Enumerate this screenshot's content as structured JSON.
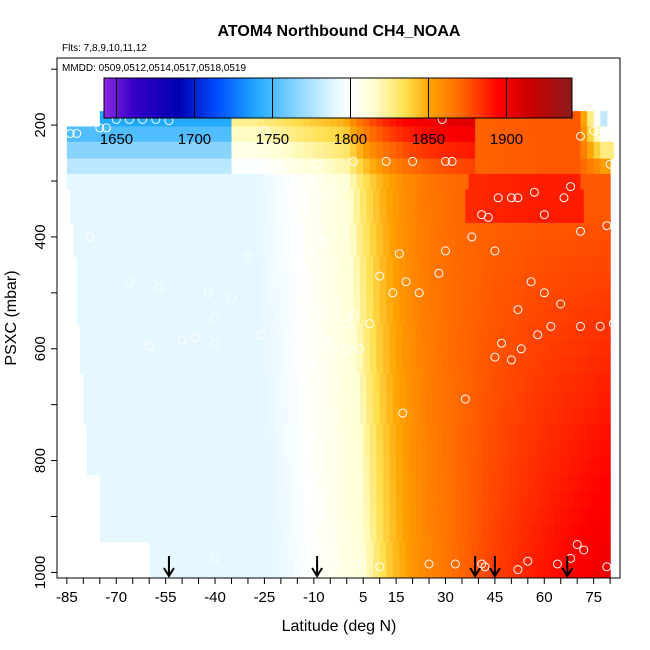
{
  "chart_data": {
    "type": "heatmap",
    "title": "ATOM4 Northbound CH4_NOAA",
    "subtitle_flights": "Flts: 7,8,9,10,11,12",
    "subtitle_dates": "MMDD: 0509,0512,0514,0517,0518,0519",
    "xlabel": "Latitude (deg N)",
    "ylabel": "PSXC (mbar)",
    "xlim": [
      -88,
      83
    ],
    "ylim": [
      1010,
      80
    ],
    "y_reversed": true,
    "x_ticks": [
      -85,
      -70,
      -55,
      -40,
      -25,
      -10,
      5,
      15,
      30,
      45,
      60,
      75
    ],
    "y_ticks": [
      200,
      400,
      600,
      800,
      1000
    ],
    "colorbar": {
      "range": [
        1642,
        1942
      ],
      "ticks": [
        1650,
        1700,
        1750,
        1800,
        1850,
        1900
      ],
      "placement": "top",
      "stops": [
        {
          "v": 1642,
          "c": "#8a2be2"
        },
        {
          "v": 1660,
          "c": "#3a00c8"
        },
        {
          "v": 1690,
          "c": "#0000b4"
        },
        {
          "v": 1715,
          "c": "#0050ff"
        },
        {
          "v": 1740,
          "c": "#22aaff"
        },
        {
          "v": 1765,
          "c": "#88d4ff"
        },
        {
          "v": 1790,
          "c": "#e6f8ff"
        },
        {
          "v": 1800,
          "c": "#ffffff"
        },
        {
          "v": 1815,
          "c": "#ffffd0"
        },
        {
          "v": 1835,
          "c": "#ffe050"
        },
        {
          "v": 1852,
          "c": "#ffa000"
        },
        {
          "v": 1872,
          "c": "#ff6400"
        },
        {
          "v": 1895,
          "c": "#ff0000"
        },
        {
          "v": 1915,
          "c": "#cc0000"
        },
        {
          "v": 1942,
          "c": "#8b1a1a"
        }
      ]
    },
    "flight_arrows_lat": [
      -54,
      -9,
      39,
      45,
      67
    ],
    "pressure_levels": [
      190,
      215,
      245,
      275,
      300,
      330,
      360,
      390,
      420,
      450,
      480,
      510,
      540,
      570,
      600,
      630,
      660,
      690,
      720,
      750,
      780,
      810,
      840,
      870,
      900,
      930,
      960,
      990
    ],
    "lat_ranges": [
      [
        -75,
        79
      ],
      [
        -85,
        81
      ],
      [
        -85,
        81
      ],
      [
        -85,
        80
      ],
      [
        -85,
        80
      ],
      [
        -84,
        80
      ],
      [
        -84,
        80
      ],
      [
        -83,
        80
      ],
      [
        -83,
        80
      ],
      [
        -82,
        80
      ],
      [
        -82,
        80
      ],
      [
        -82,
        80
      ],
      [
        -82,
        80
      ],
      [
        -81,
        80
      ],
      [
        -81,
        80
      ],
      [
        -81,
        80
      ],
      [
        -80,
        80
      ],
      [
        -80,
        80
      ],
      [
        -80,
        80
      ],
      [
        -79,
        80
      ],
      [
        -79,
        80
      ],
      [
        -79,
        80
      ],
      [
        -75,
        80
      ],
      [
        -75,
        80
      ],
      [
        -75,
        80
      ],
      [
        -75,
        80
      ],
      [
        -60,
        80
      ],
      [
        -60,
        80
      ]
    ],
    "sample_points": [
      [
        -84,
        215
      ],
      [
        -82,
        215
      ],
      [
        -75,
        205
      ],
      [
        -73,
        205
      ],
      [
        -70,
        190
      ],
      [
        -66,
        190
      ],
      [
        -62,
        190
      ],
      [
        -58,
        190
      ],
      [
        -54,
        192
      ],
      [
        -25,
        210
      ],
      [
        -9,
        270
      ],
      [
        -5,
        320
      ],
      [
        2,
        265
      ],
      [
        12,
        265
      ],
      [
        20,
        265
      ],
      [
        30,
        265
      ],
      [
        32,
        265
      ],
      [
        29,
        190
      ],
      [
        71,
        220
      ],
      [
        75,
        210
      ],
      [
        77,
        215
      ],
      [
        80,
        270
      ],
      [
        -7,
        410
      ],
      [
        16,
        430
      ],
      [
        30,
        425
      ],
      [
        38,
        400
      ],
      [
        41,
        360
      ],
      [
        43,
        365
      ],
      [
        46,
        330
      ],
      [
        50,
        330
      ],
      [
        52,
        330
      ],
      [
        57,
        320
      ],
      [
        60,
        360
      ],
      [
        66,
        330
      ],
      [
        68,
        310
      ],
      [
        71,
        390
      ],
      [
        79,
        380
      ],
      [
        -30,
        435
      ],
      [
        -22,
        480
      ],
      [
        -14,
        490
      ],
      [
        -42,
        500
      ],
      [
        -35,
        510
      ],
      [
        -40,
        545
      ],
      [
        -26,
        575
      ],
      [
        -16,
        580
      ],
      [
        -6,
        585
      ],
      [
        0,
        555
      ],
      [
        2,
        540
      ],
      [
        7,
        555
      ],
      [
        10,
        470
      ],
      [
        14,
        500
      ],
      [
        18,
        480
      ],
      [
        22,
        500
      ],
      [
        28,
        465
      ],
      [
        45,
        425
      ],
      [
        52,
        530
      ],
      [
        56,
        480
      ],
      [
        60,
        500
      ],
      [
        62,
        560
      ],
      [
        65,
        520
      ],
      [
        71,
        560
      ],
      [
        77,
        560
      ],
      [
        81,
        555
      ],
      [
        -4,
        600
      ],
      [
        0,
        600
      ],
      [
        4,
        600
      ],
      [
        36,
        690
      ],
      [
        45,
        615
      ],
      [
        47,
        590
      ],
      [
        50,
        620
      ],
      [
        53,
        600
      ],
      [
        58,
        575
      ],
      [
        -50,
        585
      ],
      [
        -40,
        590
      ],
      [
        -57,
        490
      ],
      [
        -60,
        595
      ],
      [
        -66,
        480
      ],
      [
        -78,
        400
      ],
      [
        -46,
        580
      ],
      [
        -40,
        975
      ],
      [
        -14,
        985
      ],
      [
        -4,
        985
      ],
      [
        3,
        985
      ],
      [
        17,
        715
      ],
      [
        25,
        985
      ],
      [
        33,
        985
      ],
      [
        41,
        985
      ],
      [
        55,
        980
      ],
      [
        64,
        985
      ],
      [
        68,
        975
      ],
      [
        70,
        950
      ],
      [
        72,
        960
      ],
      [
        79,
        990
      ],
      [
        42,
        990
      ],
      [
        10,
        990
      ],
      [
        52,
        995
      ]
    ]
  }
}
